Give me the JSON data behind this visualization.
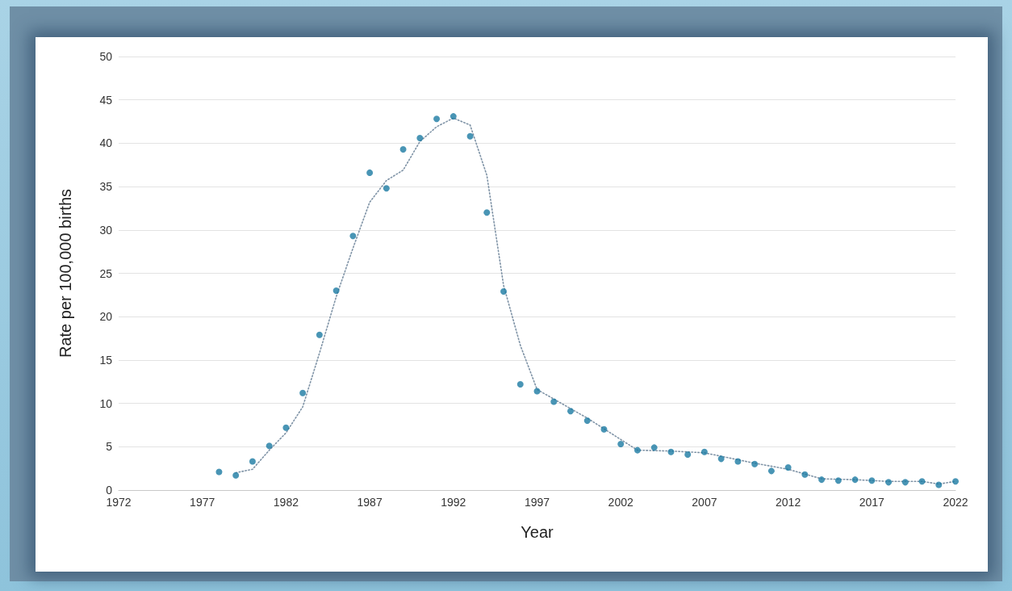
{
  "chart_data": {
    "type": "scatter",
    "xlabel": "Year",
    "ylabel": "Rate per 100,000 births",
    "xlim": [
      1972,
      2022
    ],
    "xticks": [
      1972,
      1977,
      1982,
      1987,
      1992,
      1997,
      2002,
      2007,
      2012,
      2017,
      2022
    ],
    "ylim": [
      0,
      50
    ],
    "yticks": [
      0,
      5,
      10,
      15,
      20,
      25,
      30,
      35,
      40,
      45,
      50
    ],
    "grid": "y",
    "series": [
      {
        "marker": "circle",
        "color": "#1b7ba3",
        "x": [
          1978,
          1979,
          1980,
          1981,
          1982,
          1983,
          1984,
          1985,
          1986,
          1987,
          1988,
          1989,
          1990,
          1991,
          1992,
          1993,
          1994,
          1995,
          1996,
          1997,
          1998,
          1999,
          2000,
          2001,
          2002,
          2003,
          2004,
          2005,
          2006,
          2007,
          2008,
          2009,
          2010,
          2011,
          2012,
          2013,
          2014,
          2015,
          2016,
          2017,
          2018,
          2019,
          2020,
          2021,
          2022
        ],
        "values": [
          2.1,
          1.7,
          3.3,
          5.1,
          7.2,
          11.2,
          17.9,
          23.0,
          29.3,
          36.6,
          34.8,
          39.3,
          40.6,
          42.8,
          43.1,
          40.8,
          32.0,
          22.9,
          12.2,
          11.4,
          10.2,
          9.1,
          8.0,
          7.0,
          5.3,
          4.6,
          4.9,
          4.4,
          4.1,
          4.4,
          3.6,
          3.3,
          3.0,
          2.2,
          2.6,
          1.8,
          1.2,
          1.1,
          1.2,
          1.1,
          0.9,
          0.9,
          1.0,
          0.6,
          1.0
        ]
      },
      {
        "type": "line",
        "marker": "none",
        "line_style": "dotted",
        "color": "#7f93a6",
        "x": [
          1979,
          1980,
          1981,
          1982,
          1983,
          1984,
          1985,
          1986,
          1987,
          1988,
          1989,
          1990,
          1991,
          1992,
          1993,
          1994,
          1995,
          1996,
          1997,
          2000,
          2003,
          2005,
          2007,
          2010,
          2012,
          2014,
          2016,
          2018,
          2020,
          2021,
          2022
        ],
        "values": [
          2.0,
          2.4,
          4.6,
          6.6,
          9.6,
          15.8,
          22.3,
          27.9,
          33.2,
          35.7,
          36.9,
          40.2,
          41.9,
          42.9,
          42.1,
          36.3,
          23.6,
          16.7,
          11.6,
          8.3,
          4.6,
          4.5,
          4.3,
          3.1,
          2.4,
          1.3,
          1.2,
          1.0,
          1.0,
          0.7,
          1.0
        ]
      }
    ]
  }
}
